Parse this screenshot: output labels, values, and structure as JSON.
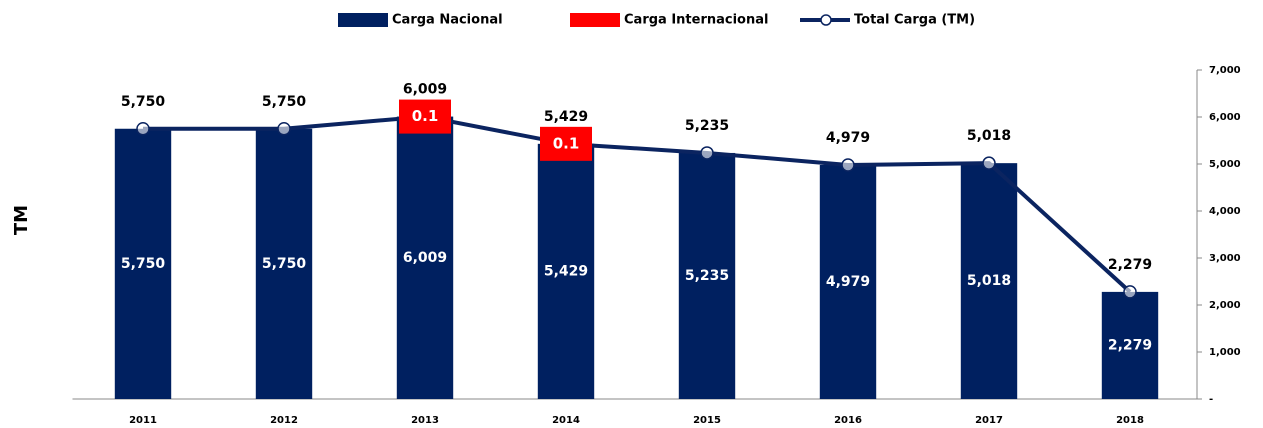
{
  "chart_data": {
    "type": "bar-line",
    "y_label": "TM",
    "categories": [
      "2011",
      "2012",
      "2013",
      "2014",
      "2015",
      "2016",
      "2017",
      "2018"
    ],
    "series": [
      {
        "name": "Carga Nacional",
        "kind": "bar",
        "color": "#002060",
        "values": [
          5750,
          5750,
          6009,
          5429,
          5235,
          4979,
          5018,
          2279
        ],
        "value_labels": [
          "5,750",
          "5,750",
          "6,009",
          "5,429",
          "5,235",
          "4,979",
          "5,018",
          "2,279"
        ]
      },
      {
        "name": "Carga Internacional",
        "kind": "bar",
        "color": "#ff0000",
        "values": [
          null,
          null,
          0.1,
          0.1,
          null,
          null,
          null,
          null
        ]
      },
      {
        "name": "Total Carga (TM)",
        "kind": "line",
        "color": "#0b2460",
        "values": [
          5750,
          5750,
          6009,
          5429,
          5235,
          4979,
          5018,
          2279
        ],
        "value_labels": [
          "5,750",
          "5,750",
          "6,009",
          "5,429",
          "5,235",
          "4,979",
          "5,018",
          "2,279"
        ]
      }
    ],
    "ylim": [
      0,
      7000
    ],
    "yticks": [
      {
        "value": 0,
        "label": "-"
      },
      {
        "value": 1000,
        "label": "1,000"
      },
      {
        "value": 2000,
        "label": "2,000"
      },
      {
        "value": 3000,
        "label": "3,000"
      },
      {
        "value": 4000,
        "label": "4,000"
      },
      {
        "value": 5000,
        "label": "5,000"
      },
      {
        "value": 6000,
        "label": "6,000"
      },
      {
        "value": 7000,
        "label": "7,000"
      }
    ],
    "y_axis_side": "right",
    "grid": false
  }
}
